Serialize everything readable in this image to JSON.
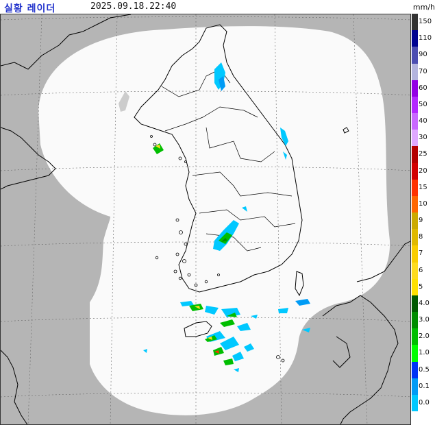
{
  "header": {
    "title": "실황 레이더",
    "timestamp": "2025.09.18.22:40"
  },
  "legend": {
    "unit": "mm/h",
    "entries": [
      {
        "label": "150",
        "color": "#333333"
      },
      {
        "label": "110",
        "color": "#000390"
      },
      {
        "label": "90",
        "color": "#4c4eb1"
      },
      {
        "label": "70",
        "color": "#b3b4de"
      },
      {
        "label": "60",
        "color": "#9300e4"
      },
      {
        "label": "50",
        "color": "#b329ff"
      },
      {
        "label": "40",
        "color": "#c969ff"
      },
      {
        "label": "30",
        "color": "#e0a9ff"
      },
      {
        "label": "25",
        "color": "#b40000"
      },
      {
        "label": "20",
        "color": "#d20000"
      },
      {
        "label": "15",
        "color": "#ff3200"
      },
      {
        "label": "10",
        "color": "#ff6600"
      },
      {
        "label": "9",
        "color": "#ccaa00"
      },
      {
        "label": "8",
        "color": "#e0b900"
      },
      {
        "label": "7",
        "color": "#f9cd00"
      },
      {
        "label": "6",
        "color": "#ffdc1f"
      },
      {
        "label": "5",
        "color": "#ffe100"
      },
      {
        "label": "4.0",
        "color": "#005a00"
      },
      {
        "label": "3.0",
        "color": "#008c00"
      },
      {
        "label": "2.0",
        "color": "#00be00"
      },
      {
        "label": "1.0",
        "color": "#00ff00"
      },
      {
        "label": "0.5",
        "color": "#0033f5"
      },
      {
        "label": "0.1",
        "color": "#009bf5"
      },
      {
        "label": "0.0",
        "color": "#00c8ff"
      }
    ]
  },
  "colors": {
    "outside_coverage": "#b5b5b5",
    "coverage_area": "#fafafa",
    "coastline": "#000000",
    "grid": "#555555"
  }
}
